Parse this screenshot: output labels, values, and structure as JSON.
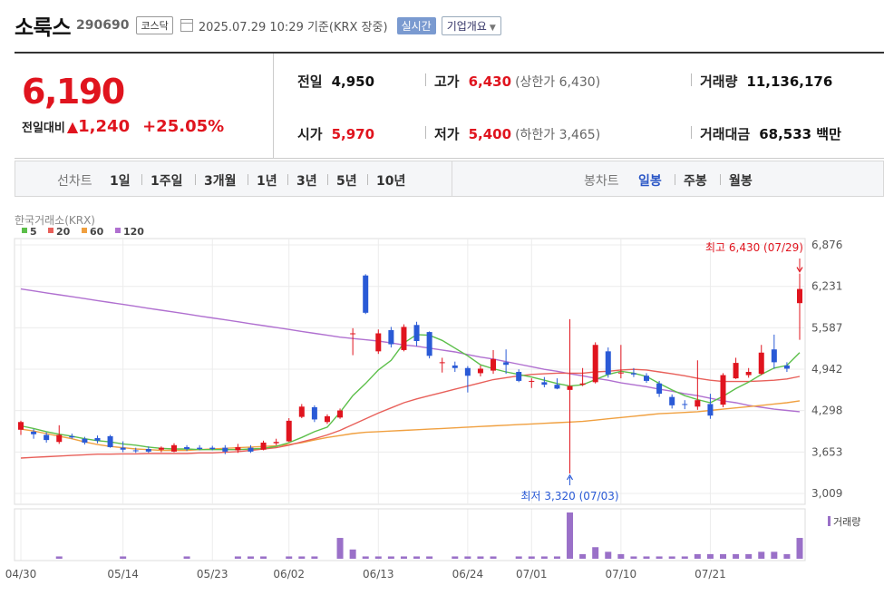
{
  "header": {
    "name": "소룩스",
    "code": "290690",
    "market": "코스닥",
    "datetime": "2025.07.29 10:29  기준(KRX 장중)",
    "realtime_label": "실시간",
    "overview_label": "기업개요"
  },
  "summary": {
    "price": "6,190",
    "change_label": "전일대비",
    "change_amount": "1,240",
    "change_percent": "+25.05%",
    "prev_close_label": "전일",
    "prev_close": "4,950",
    "open_label": "시가",
    "open": "5,970",
    "high_label": "고가",
    "high": "6,430",
    "upper_limit": "(상한가 6,430)",
    "low_label": "저가",
    "low": "5,400",
    "lower_limit": "(하한가 3,465)",
    "volume_label": "거래량",
    "volume": "11,136,176",
    "amount_label": "거래대금",
    "amount": "68,533 백만"
  },
  "periodbar": {
    "line_label": "선차트",
    "line_periods": [
      "1일",
      "1주일",
      "3개월",
      "1년",
      "3년",
      "5년",
      "10년"
    ],
    "candle_label": "봉차트",
    "candle_periods": [
      "일봉",
      "주봉",
      "월봉"
    ],
    "active_candle": "일봉"
  },
  "colors": {
    "up": "#e0141e",
    "down": "#2a5ad6",
    "ma5": "#5cbf4a",
    "ma20": "#e8605a",
    "ma60": "#f0a040",
    "ma120": "#b070d0",
    "volume": "#9a70c8"
  },
  "chart_data": {
    "type": "candlestick",
    "source_label": "한국거래소(KRX)",
    "legend": [
      {
        "name": "5",
        "color": "#5cbf4a"
      },
      {
        "name": "20",
        "color": "#e8605a"
      },
      {
        "name": "60",
        "color": "#f0a040"
      },
      {
        "name": "120",
        "color": "#b070d0"
      }
    ],
    "y_ticks": [
      6876,
      6231,
      5587,
      4942,
      4298,
      3653,
      3009
    ],
    "y_tick_labels": [
      "6,876",
      "6,231",
      "5,587",
      "4,942",
      "4,298",
      "3,653",
      "3,009"
    ],
    "ylim": [
      3009,
      6876
    ],
    "x_tick_labels": [
      {
        "label": "04/30",
        "index": 0
      },
      {
        "label": "05/14",
        "index": 8
      },
      {
        "label": "05/23",
        "index": 15
      },
      {
        "label": "06/02",
        "index": 21
      },
      {
        "label": "06/13",
        "index": 28
      },
      {
        "label": "06/24",
        "index": 35
      },
      {
        "label": "07/01",
        "index": 40
      },
      {
        "label": "07/10",
        "index": 47
      },
      {
        "label": "07/21",
        "index": 54
      }
    ],
    "candles": [
      {
        "o": 4000,
        "h": 4140,
        "l": 3920,
        "c": 4120
      },
      {
        "o": 3970,
        "h": 4010,
        "l": 3860,
        "c": 3930
      },
      {
        "o": 3920,
        "h": 3960,
        "l": 3800,
        "c": 3840
      },
      {
        "o": 3810,
        "h": 4070,
        "l": 3780,
        "c": 3920
      },
      {
        "o": 3900,
        "h": 3940,
        "l": 3860,
        "c": 3880
      },
      {
        "o": 3860,
        "h": 3890,
        "l": 3770,
        "c": 3800
      },
      {
        "o": 3870,
        "h": 3910,
        "l": 3790,
        "c": 3830
      },
      {
        "o": 3900,
        "h": 3920,
        "l": 3720,
        "c": 3730
      },
      {
        "o": 3720,
        "h": 3820,
        "l": 3650,
        "c": 3690
      },
      {
        "o": 3680,
        "h": 3720,
        "l": 3640,
        "c": 3670
      },
      {
        "o": 3700,
        "h": 3740,
        "l": 3640,
        "c": 3660
      },
      {
        "o": 3690,
        "h": 3740,
        "l": 3650,
        "c": 3720
      },
      {
        "o": 3660,
        "h": 3790,
        "l": 3650,
        "c": 3760
      },
      {
        "o": 3730,
        "h": 3760,
        "l": 3670,
        "c": 3700
      },
      {
        "o": 3720,
        "h": 3760,
        "l": 3680,
        "c": 3700
      },
      {
        "o": 3720,
        "h": 3750,
        "l": 3680,
        "c": 3700
      },
      {
        "o": 3720,
        "h": 3760,
        "l": 3620,
        "c": 3660
      },
      {
        "o": 3680,
        "h": 3780,
        "l": 3640,
        "c": 3730
      },
      {
        "o": 3720,
        "h": 3760,
        "l": 3640,
        "c": 3660
      },
      {
        "o": 3690,
        "h": 3830,
        "l": 3680,
        "c": 3800
      },
      {
        "o": 3790,
        "h": 3860,
        "l": 3760,
        "c": 3810
      },
      {
        "o": 3820,
        "h": 4180,
        "l": 3810,
        "c": 4140
      },
      {
        "o": 4200,
        "h": 4400,
        "l": 4180,
        "c": 4360
      },
      {
        "o": 4350,
        "h": 4380,
        "l": 4120,
        "c": 4160
      },
      {
        "o": 4120,
        "h": 4240,
        "l": 4090,
        "c": 4210
      },
      {
        "o": 4190,
        "h": 4330,
        "l": 4170,
        "c": 4300
      },
      {
        "o": 5500,
        "h": 5580,
        "l": 5160,
        "c": 5500
      },
      {
        "o": 6400,
        "h": 6420,
        "l": 5800,
        "c": 5820
      },
      {
        "o": 5220,
        "h": 5560,
        "l": 5180,
        "c": 5500
      },
      {
        "o": 5550,
        "h": 5600,
        "l": 5280,
        "c": 5330
      },
      {
        "o": 5240,
        "h": 5640,
        "l": 5220,
        "c": 5600
      },
      {
        "o": 5630,
        "h": 5680,
        "l": 5300,
        "c": 5380
      },
      {
        "o": 5520,
        "h": 5530,
        "l": 5110,
        "c": 5150
      },
      {
        "o": 5050,
        "h": 5120,
        "l": 4890,
        "c": 5050
      },
      {
        "o": 5000,
        "h": 5060,
        "l": 4900,
        "c": 4960
      },
      {
        "o": 4960,
        "h": 4990,
        "l": 4580,
        "c": 4840
      },
      {
        "o": 4880,
        "h": 5000,
        "l": 4830,
        "c": 4950
      },
      {
        "o": 4920,
        "h": 5240,
        "l": 4870,
        "c": 5100
      },
      {
        "o": 5050,
        "h": 5250,
        "l": 4870,
        "c": 5010
      },
      {
        "o": 4900,
        "h": 4940,
        "l": 4740,
        "c": 4760
      },
      {
        "o": 4750,
        "h": 4800,
        "l": 4650,
        "c": 4760
      },
      {
        "o": 4740,
        "h": 4820,
        "l": 4660,
        "c": 4700
      },
      {
        "o": 4700,
        "h": 4800,
        "l": 4630,
        "c": 4640
      },
      {
        "o": 4620,
        "h": 5720,
        "l": 3320,
        "c": 4680
      },
      {
        "o": 4700,
        "h": 4960,
        "l": 4680,
        "c": 4720
      },
      {
        "o": 4740,
        "h": 5360,
        "l": 4720,
        "c": 5320
      },
      {
        "o": 5220,
        "h": 5280,
        "l": 4810,
        "c": 4860
      },
      {
        "o": 4880,
        "h": 5320,
        "l": 4800,
        "c": 4890
      },
      {
        "o": 4880,
        "h": 4960,
        "l": 4820,
        "c": 4860
      },
      {
        "o": 4840,
        "h": 4880,
        "l": 4730,
        "c": 4760
      },
      {
        "o": 4720,
        "h": 4760,
        "l": 4510,
        "c": 4560
      },
      {
        "o": 4510,
        "h": 4550,
        "l": 4330,
        "c": 4380
      },
      {
        "o": 4400,
        "h": 4460,
        "l": 4320,
        "c": 4390
      },
      {
        "o": 4360,
        "h": 5080,
        "l": 4310,
        "c": 4460
      },
      {
        "o": 4400,
        "h": 4560,
        "l": 4170,
        "c": 4220
      },
      {
        "o": 4390,
        "h": 4880,
        "l": 4350,
        "c": 4850
      },
      {
        "o": 4800,
        "h": 5120,
        "l": 4790,
        "c": 5040
      },
      {
        "o": 4850,
        "h": 4960,
        "l": 4810,
        "c": 4900
      },
      {
        "o": 4870,
        "h": 5320,
        "l": 4850,
        "c": 5200
      },
      {
        "o": 5250,
        "h": 5480,
        "l": 4950,
        "c": 5050
      },
      {
        "o": 5000,
        "h": 5050,
        "l": 4900,
        "c": 4950
      },
      {
        "o": 5970,
        "h": 6430,
        "l": 5400,
        "c": 6190
      }
    ],
    "ma5": [
      4060,
      4020,
      3970,
      3930,
      3900,
      3860,
      3830,
      3810,
      3780,
      3760,
      3730,
      3710,
      3700,
      3700,
      3690,
      3690,
      3690,
      3690,
      3700,
      3710,
      3740,
      3800,
      3880,
      3970,
      4040,
      4270,
      4530,
      4720,
      4930,
      5080,
      5350,
      5480,
      5470,
      5390,
      5270,
      5150,
      5010,
      4950,
      4900,
      4860,
      4820,
      4770,
      4720,
      4680,
      4700,
      4780,
      4860,
      4910,
      4880,
      4830,
      4720,
      4620,
      4530,
      4470,
      4420,
      4520,
      4640,
      4740,
      4860,
      4960,
      5000,
      5200
    ],
    "ma20": [
      3560,
      3570,
      3580,
      3590,
      3600,
      3610,
      3620,
      3620,
      3625,
      3625,
      3630,
      3630,
      3630,
      3630,
      3640,
      3640,
      3650,
      3660,
      3680,
      3700,
      3720,
      3760,
      3810,
      3860,
      3920,
      3990,
      4080,
      4170,
      4260,
      4340,
      4420,
      4480,
      4530,
      4580,
      4630,
      4680,
      4730,
      4780,
      4810,
      4840,
      4860,
      4870,
      4880,
      4880,
      4880,
      4900,
      4910,
      4930,
      4940,
      4930,
      4900,
      4870,
      4840,
      4800,
      4770,
      4750,
      4750,
      4750,
      4760,
      4770,
      4790,
      4830
    ],
    "ma60": [
      4010,
      3980,
      3940,
      3900,
      3860,
      3810,
      3770,
      3740,
      3720,
      3700,
      3690,
      3680,
      3680,
      3680,
      3690,
      3700,
      3710,
      3720,
      3730,
      3740,
      3750,
      3770,
      3800,
      3840,
      3880,
      3910,
      3940,
      3960,
      3970,
      3980,
      3990,
      4000,
      4010,
      4020,
      4030,
      4040,
      4050,
      4060,
      4070,
      4080,
      4090,
      4100,
      4110,
      4120,
      4130,
      4150,
      4170,
      4190,
      4210,
      4230,
      4250,
      4260,
      4270,
      4280,
      4300,
      4320,
      4340,
      4360,
      4380,
      4400,
      4420,
      4450
    ],
    "ma120": [
      6190,
      6160,
      6130,
      6100,
      6070,
      6040,
      6010,
      5980,
      5950,
      5920,
      5890,
      5860,
      5830,
      5800,
      5770,
      5740,
      5710,
      5680,
      5650,
      5620,
      5590,
      5560,
      5530,
      5500,
      5470,
      5440,
      5420,
      5400,
      5380,
      5350,
      5320,
      5300,
      5270,
      5240,
      5210,
      5170,
      5130,
      5100,
      5060,
      5020,
      4980,
      4940,
      4910,
      4870,
      4840,
      4800,
      4770,
      4730,
      4700,
      4670,
      4630,
      4600,
      4560,
      4530,
      4490,
      4450,
      4420,
      4380,
      4350,
      4320,
      4300,
      4280
    ],
    "volume_label": "거래량",
    "volumes": [
      0,
      0,
      0,
      5,
      0,
      0,
      0,
      0,
      5,
      0,
      0,
      0,
      0,
      5,
      0,
      0,
      0,
      5,
      5,
      5,
      0,
      5,
      5,
      5,
      0,
      45,
      20,
      5,
      5,
      5,
      5,
      5,
      5,
      0,
      5,
      5,
      5,
      5,
      0,
      5,
      5,
      5,
      5,
      100,
      10,
      25,
      15,
      10,
      5,
      5,
      5,
      5,
      5,
      10,
      10,
      10,
      10,
      10,
      15,
      15,
      10,
      45
    ],
    "annotations": {
      "high": {
        "label": "최고 6,430 (07/29)",
        "index": 61,
        "value": 6430
      },
      "low": {
        "label": "최저 3,320 (07/03)",
        "index": 43,
        "value": 3320
      }
    }
  }
}
